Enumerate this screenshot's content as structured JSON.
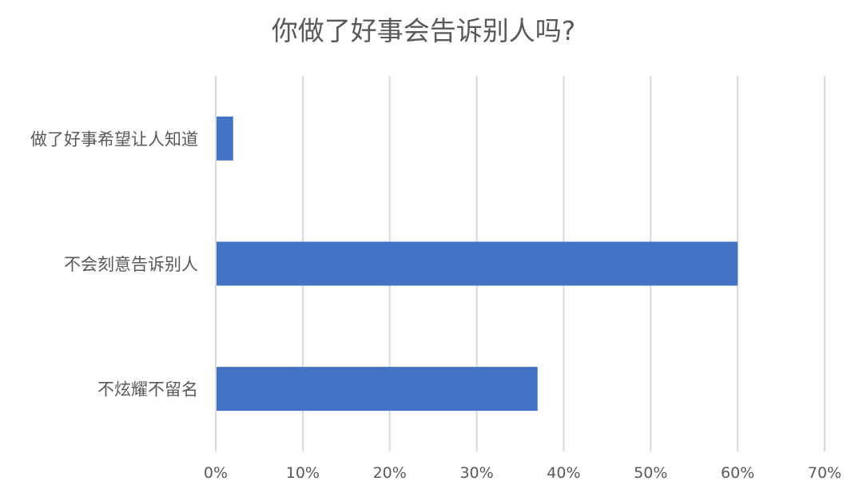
{
  "chart_data": {
    "type": "bar",
    "orientation": "horizontal",
    "title": "你做了好事会告诉别人吗?",
    "categories": [
      "做了好事希望让人知道",
      "不会刻意告诉别人",
      "不炫耀不留名"
    ],
    "values": [
      2,
      60,
      37
    ],
    "unit": "%",
    "xlim": [
      0,
      70
    ],
    "xticks": [
      "0%",
      "10%",
      "20%",
      "30%",
      "40%",
      "50%",
      "60%",
      "70%"
    ],
    "grid": true,
    "legend": "none",
    "colors": {
      "bar": "#4472C4",
      "grid": "#D9D9D9",
      "text": "#595959"
    }
  }
}
